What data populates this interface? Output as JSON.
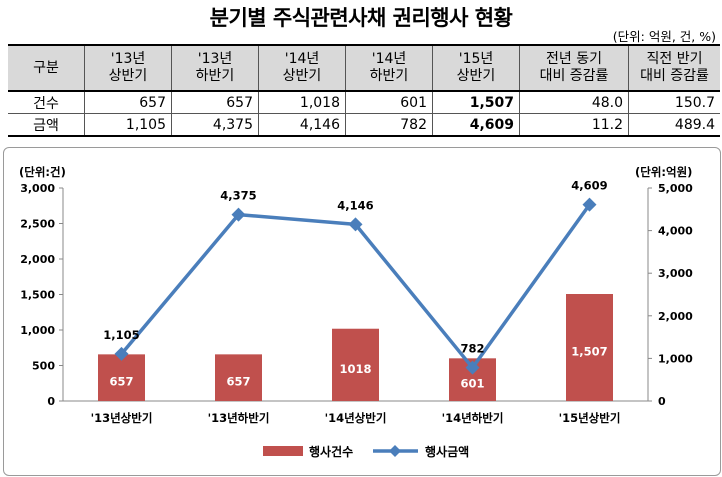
{
  "title": "분기별 주식관련사채 권리행사 현황",
  "unit_note": "(단위: 억원, 건, %)",
  "table": {
    "headers": [
      [
        "구분"
      ],
      [
        "'13년",
        "상반기"
      ],
      [
        "'13년",
        "하반기"
      ],
      [
        "'14년",
        "상반기"
      ],
      [
        "'14년",
        "하반기"
      ],
      [
        "'15년",
        "상반기"
      ],
      [
        "전년 동기",
        "대비 증감률"
      ],
      [
        "직전 반기",
        "대비 증감률"
      ]
    ],
    "rows": [
      {
        "label": "건수",
        "cells": [
          "657",
          "657",
          "1,018",
          "601",
          "1,507",
          "48.0",
          "150.7"
        ]
      },
      {
        "label": "금액",
        "cells": [
          "1,105",
          "4,375",
          "4,146",
          "782",
          "4,609",
          "11.2",
          "489.4"
        ]
      }
    ]
  },
  "chart_data": {
    "type": "bar+line",
    "categories": [
      "'13년상반기",
      "'13년하반기",
      "'14년상반기",
      "'14년하반기",
      "'15년상반기"
    ],
    "series": [
      {
        "name": "행사건수",
        "type": "bar",
        "axis": "left",
        "values": [
          657,
          657,
          1018,
          601,
          1507
        ],
        "labels": [
          "657",
          "657",
          "1018",
          "601",
          "1,507"
        ],
        "color": "#c0504d"
      },
      {
        "name": "행사금액",
        "type": "line",
        "axis": "right",
        "values": [
          1105,
          4375,
          4146,
          782,
          4609
        ],
        "labels": [
          "1,105",
          "4,375",
          "4,146",
          "782",
          "4,609"
        ],
        "color": "#4a7ebb"
      }
    ],
    "y_left": {
      "label": "(단위:건)",
      "ylim": [
        0,
        3000
      ],
      "ticks": [
        "0",
        "500",
        "1,000",
        "1,500",
        "2,000",
        "2,500",
        "3,000"
      ]
    },
    "y_right": {
      "label": "(단위:억원)",
      "ylim": [
        0,
        5000
      ],
      "ticks": [
        "0",
        "1,000",
        "2,000",
        "3,000",
        "4,000",
        "5,000"
      ]
    },
    "grid": false,
    "legend": "bottom"
  }
}
